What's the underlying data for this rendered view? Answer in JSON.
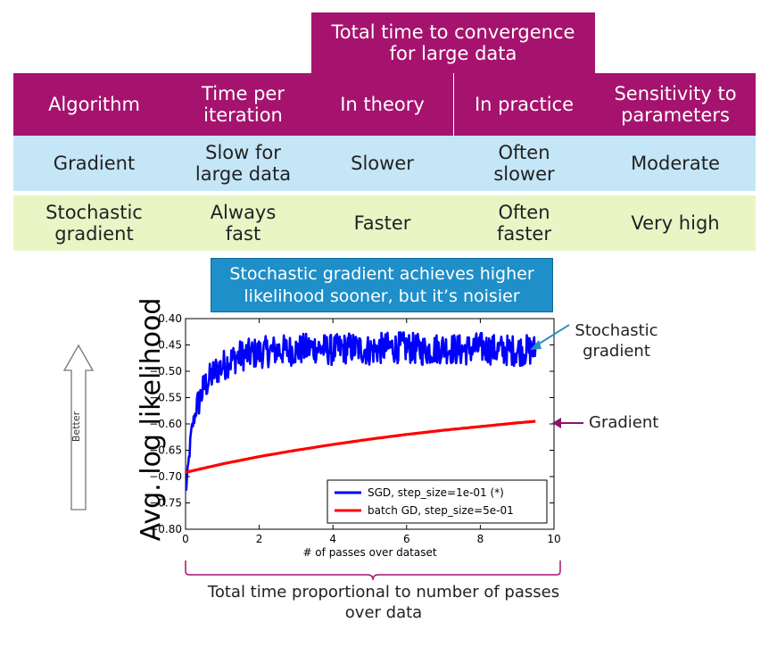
{
  "table": {
    "group_header": "Total time to convergence for large data",
    "columns": [
      "Algorithm",
      "Time per iteration",
      "In theory",
      "In practice",
      "Sensitivity to parameters"
    ],
    "rows": [
      {
        "cells": [
          "Gradient",
          "Slow for large data",
          "Slower",
          "Often slower",
          "Moderate"
        ]
      },
      {
        "cells": [
          "Stochastic gradient",
          "Always fast",
          "Faster",
          "Often faster",
          "Very high"
        ]
      }
    ],
    "colors": {
      "header": "#a5136e",
      "row_gradient": "#c5e6f7",
      "row_stochastic": "#eaf5c6"
    }
  },
  "callout": "Stochastic gradient achieves higher likelihood sooner, but it’s noisier",
  "better_label": "Better",
  "annotations": {
    "stochastic": "Stochastic gradient",
    "gradient": "Gradient"
  },
  "bottom_note": "Total time proportional to number of passes over data",
  "chart_data": {
    "type": "line",
    "xlabel": "# of passes over dataset",
    "ylabel": "Avg. log likelihood",
    "xlim": [
      0,
      10
    ],
    "ylim": [
      -0.8,
      -0.4
    ],
    "xticks": [
      0,
      2,
      4,
      6,
      8,
      10
    ],
    "yticks": [
      -0.8,
      -0.75,
      -0.7,
      -0.65,
      -0.6,
      -0.55,
      -0.5,
      -0.45,
      -0.4
    ],
    "grid": false,
    "legend_position": "bottom-right",
    "series": [
      {
        "name": "SGD, step_size=1e-01 (*)",
        "color": "#0000ff",
        "x": [
          0,
          0.05,
          0.1,
          0.15,
          0.2,
          0.3,
          0.4,
          0.5,
          0.6,
          0.8,
          1.0,
          1.2,
          1.5,
          2.0,
          2.5,
          3.0,
          3.5,
          4.0,
          4.5,
          5.0,
          5.5,
          6.0,
          6.5,
          7.0,
          7.5,
          8.0,
          8.5,
          9.0,
          9.5
        ],
        "y": [
          -0.73,
          -0.7,
          -0.66,
          -0.62,
          -0.6,
          -0.57,
          -0.55,
          -0.53,
          -0.52,
          -0.5,
          -0.49,
          -0.48,
          -0.47,
          -0.465,
          -0.46,
          -0.46,
          -0.455,
          -0.46,
          -0.455,
          -0.46,
          -0.455,
          -0.455,
          -0.46,
          -0.455,
          -0.46,
          -0.455,
          -0.46,
          -0.46,
          -0.46
        ],
        "noise_amplitude": 0.03
      },
      {
        "name": "batch GD, step_size=5e-01",
        "color": "#ff0000",
        "x": [
          0,
          1,
          2,
          3,
          4,
          5,
          6,
          7,
          8,
          9,
          9.5
        ],
        "y": [
          -0.692,
          -0.676,
          -0.662,
          -0.65,
          -0.639,
          -0.629,
          -0.62,
          -0.612,
          -0.605,
          -0.598,
          -0.595
        ]
      }
    ]
  }
}
